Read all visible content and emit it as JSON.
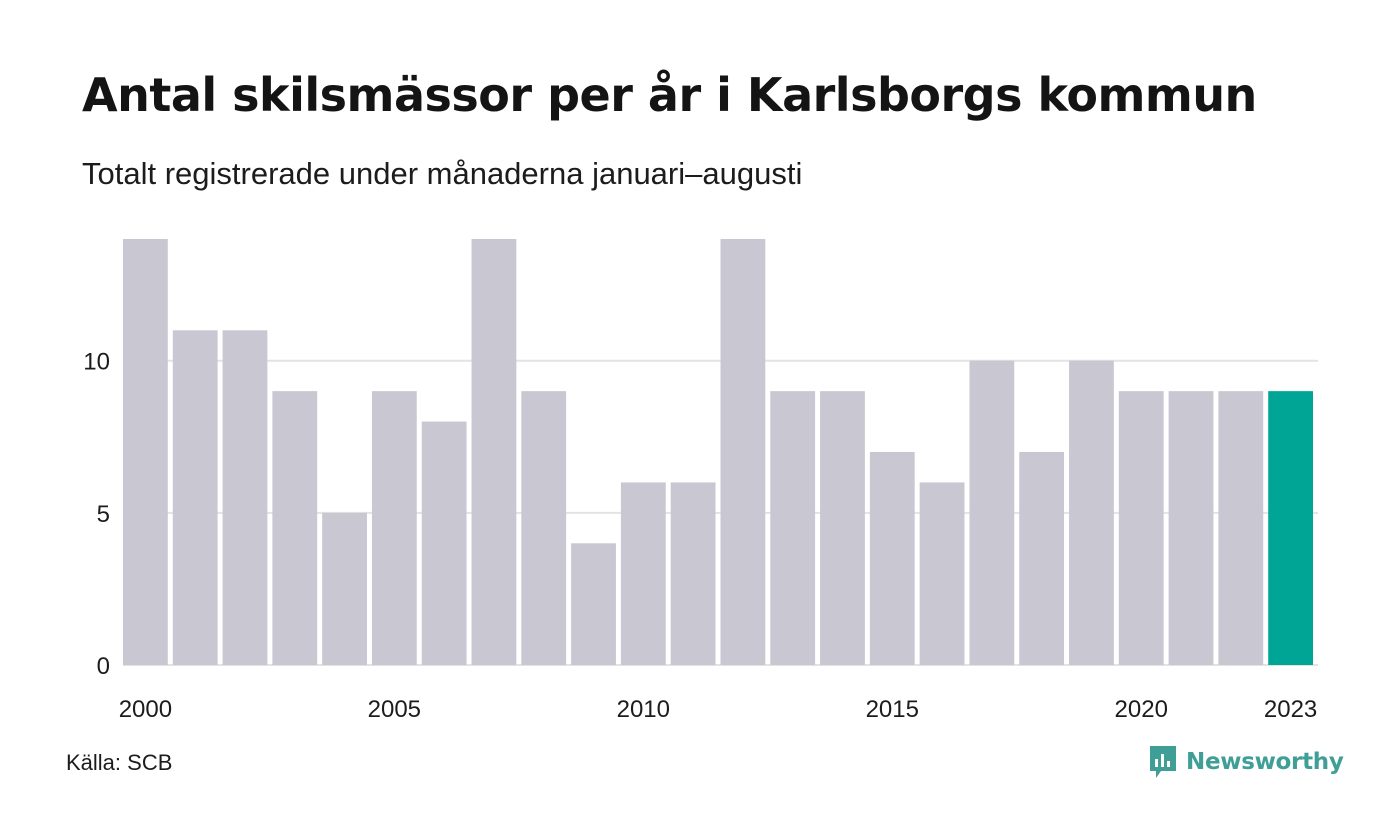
{
  "chart_data": {
    "type": "bar",
    "title": "Antal skilsmässor per år i Karlsborgs kommun",
    "subtitle": "Totalt registrerade under månaderna januari–augusti",
    "categories": [
      "2000",
      "2001",
      "2002",
      "2003",
      "2004",
      "2005",
      "2006",
      "2007",
      "2008",
      "2009",
      "2010",
      "2011",
      "2012",
      "2013",
      "2014",
      "2015",
      "2016",
      "2017",
      "2018",
      "2019",
      "2020",
      "2021",
      "2022",
      "2023"
    ],
    "values": [
      14,
      11,
      11,
      9,
      5,
      9,
      8,
      14,
      9,
      4,
      6,
      6,
      14,
      9,
      9,
      7,
      6,
      10,
      7,
      10,
      9,
      9,
      9,
      9
    ],
    "x_tick_labels": [
      "2000",
      "2005",
      "2010",
      "2015",
      "2020",
      "2023"
    ],
    "y_ticks": [
      0,
      5,
      10
    ],
    "ylim": [
      0,
      14
    ],
    "grid": true,
    "highlight_category": "2023",
    "colors": {
      "bar": "#c8c7d2",
      "highlight": "#00a596",
      "grid": "#e3e3e3"
    }
  },
  "footer": {
    "source": "Källa: SCB",
    "brand": "Newsworthy"
  }
}
